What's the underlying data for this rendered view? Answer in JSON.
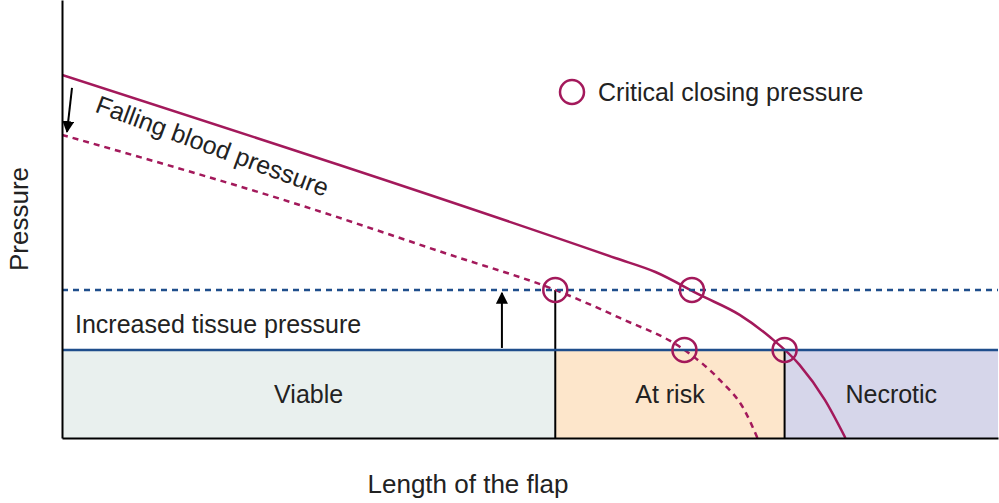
{
  "chart_data": {
    "type": "line",
    "x_label": "Length of the flap",
    "y_label": "Pressure",
    "xlim": [
      0,
      100
    ],
    "ylim": [
      0,
      100
    ],
    "xticks": [],
    "yticks": [],
    "tick_labels": false,
    "grid": false,
    "series": [
      {
        "color": "#a3195b",
        "line_style": "solid",
        "x": [
          0,
          59.1,
          63.4,
          68.2,
          72.4,
          75.6,
          78.8,
          81.5,
          83.7
        ],
        "values": [
          82.9,
          41.1,
          37.9,
          32.6,
          28.1,
          23.1,
          16.7,
          8.7,
          0
        ]
      },
      {
        "name": "Falling blood pressure",
        "color": "#a3195b",
        "line_style": "dashed",
        "x": [
          0,
          25.4,
          41.5,
          52.7,
          59.6,
          66.5,
          70.3,
          72.9,
          74.3
        ],
        "values": [
          69.2,
          53.2,
          41.8,
          33.8,
          27.4,
          20.1,
          13.2,
          6.4,
          0
        ]
      },
      {
        "color": "#1f4e8c",
        "line_style": "solid",
        "x": [
          0,
          100
        ],
        "values": [
          20.1,
          20.1
        ]
      },
      {
        "name": "Increased tissue pressure",
        "color": "#1f4e8c",
        "line_style": "dashed",
        "x": [
          0,
          100
        ],
        "values": [
          33.8,
          33.8
        ]
      }
    ],
    "points": {
      "name": "Critical closing pressure",
      "color": "#a3195b",
      "marker": "circle",
      "x": [
        52.7,
        67.3,
        66.5,
        77.2
      ],
      "values": [
        33.8,
        33.8,
        20.1,
        20.1
      ]
    },
    "regions": [
      {
        "label": "Viable",
        "color": "#e9f0ee",
        "x": [
          0,
          52.7
        ]
      },
      {
        "label": "At risk",
        "color": "#fde6cb",
        "x": [
          52.7,
          77.2
        ]
      },
      {
        "label": "Necrotic",
        "color": "#d6d6ea",
        "x": [
          77.2,
          100
        ]
      }
    ]
  }
}
